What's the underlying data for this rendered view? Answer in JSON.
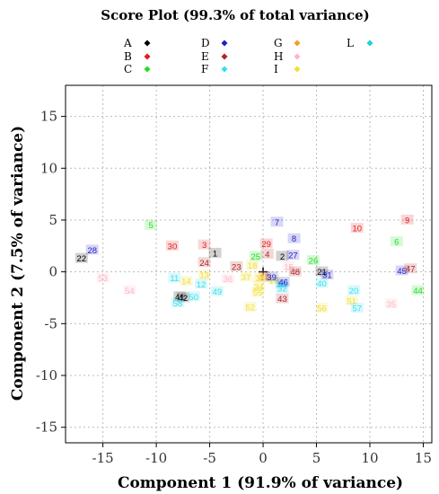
{
  "chart_data": {
    "type": "scatter",
    "title": "Score Plot (99.3% of total variance)",
    "xlabel": "Component 1 (91.9% of variance)",
    "ylabel": "Component 2 (7.5% of variance)",
    "xlim": [
      -18.5,
      15.8
    ],
    "ylim": [
      -16.5,
      18
    ],
    "xticks": [
      -15,
      -10,
      -5,
      0,
      5,
      10,
      15
    ],
    "yticks": [
      -15,
      -10,
      -5,
      0,
      5,
      10,
      15
    ],
    "grid": true,
    "origin_marker": "+",
    "legend_position": "top",
    "groups": [
      {
        "name": "A",
        "color": "#000000"
      },
      {
        "name": "B",
        "color": "#e41a1c"
      },
      {
        "name": "C",
        "color": "#22dd22"
      },
      {
        "name": "D",
        "color": "#1f1fc8"
      },
      {
        "name": "E",
        "color": "#b22222"
      },
      {
        "name": "F",
        "color": "#33e0f0"
      },
      {
        "name": "G",
        "color": "#f0a020"
      },
      {
        "name": "H",
        "color": "#ffb6c1"
      },
      {
        "name": "I",
        "color": "#f0e030"
      },
      {
        "name": "L",
        "color": "#20d0d0"
      }
    ],
    "points": [
      {
        "label": "1",
        "group": "A",
        "x": -4.5,
        "y": 1.8
      },
      {
        "label": "2",
        "group": "A",
        "x": 1.8,
        "y": 1.5
      },
      {
        "label": "3",
        "group": "B",
        "x": -5.5,
        "y": 2.6
      },
      {
        "label": "4",
        "group": "E",
        "x": 0.4,
        "y": 1.7
      },
      {
        "label": "5",
        "group": "C",
        "x": -10.5,
        "y": 4.5
      },
      {
        "label": "6",
        "group": "C",
        "x": 12.5,
        "y": 2.9
      },
      {
        "label": "7",
        "group": "D",
        "x": 1.3,
        "y": 4.8
      },
      {
        "label": "8",
        "group": "D",
        "x": 2.9,
        "y": 3.2
      },
      {
        "label": "9",
        "group": "B",
        "x": 13.5,
        "y": 5.0
      },
      {
        "label": "10",
        "group": "B",
        "x": 8.8,
        "y": 4.2
      },
      {
        "label": "11",
        "group": "F",
        "x": -8.3,
        "y": -0.6
      },
      {
        "label": "12",
        "group": "F",
        "x": -5.8,
        "y": -1.2
      },
      {
        "label": "13",
        "group": "I",
        "x": -5.5,
        "y": -0.3
      },
      {
        "label": "14",
        "group": "I",
        "x": -7.2,
        "y": -0.9
      },
      {
        "label": "15",
        "group": "H",
        "x": 2.4,
        "y": 0.5
      },
      {
        "label": "16",
        "group": "H",
        "x": 0.2,
        "y": -0.4
      },
      {
        "label": "17",
        "group": "G",
        "x": 0.1,
        "y": -0.5
      },
      {
        "label": "18",
        "group": "I",
        "x": -1.0,
        "y": 0.6
      },
      {
        "label": "19",
        "group": "I",
        "x": 1.0,
        "y": -0.8
      },
      {
        "label": "20",
        "group": "F",
        "x": 8.5,
        "y": -1.8
      },
      {
        "label": "21",
        "group": "A",
        "x": 5.5,
        "y": 0.0
      },
      {
        "label": "22",
        "group": "A",
        "x": -17.0,
        "y": 1.3
      },
      {
        "label": "23",
        "group": "E",
        "x": -2.5,
        "y": 0.5
      },
      {
        "label": "24",
        "group": "E",
        "x": -5.5,
        "y": 0.9
      },
      {
        "label": "25",
        "group": "C",
        "x": -0.7,
        "y": 1.5
      },
      {
        "label": "26",
        "group": "C",
        "x": 4.7,
        "y": 1.1
      },
      {
        "label": "27",
        "group": "D",
        "x": 2.8,
        "y": 1.6
      },
      {
        "label": "28",
        "group": "D",
        "x": -16.0,
        "y": 2.1
      },
      {
        "label": "29",
        "group": "B",
        "x": 0.3,
        "y": 2.7
      },
      {
        "label": "30",
        "group": "B",
        "x": -8.5,
        "y": 2.5
      },
      {
        "label": "31",
        "group": "D",
        "x": 6.0,
        "y": -0.3
      },
      {
        "label": "32",
        "group": "F",
        "x": 1.8,
        "y": -1.6
      },
      {
        "label": "33",
        "group": "I",
        "x": -0.3,
        "y": -0.6
      },
      {
        "label": "34",
        "group": "I",
        "x": -0.4,
        "y": -1.4
      },
      {
        "label": "35",
        "group": "H",
        "x": 12.0,
        "y": -3.1
      },
      {
        "label": "36",
        "group": "H",
        "x": -3.3,
        "y": -0.7
      },
      {
        "label": "37",
        "group": "I",
        "x": -1.6,
        "y": -0.5
      },
      {
        "label": "38",
        "group": "F",
        "x": 1.7,
        "y": -1.2
      },
      {
        "label": "39",
        "group": "D",
        "x": 0.8,
        "y": -0.5
      },
      {
        "label": "40",
        "group": "F",
        "x": 5.5,
        "y": -1.1
      },
      {
        "label": "41",
        "group": "A",
        "x": -7.8,
        "y": -2.4
      },
      {
        "label": "42",
        "group": "A",
        "x": -7.5,
        "y": -2.5
      },
      {
        "label": "43",
        "group": "E",
        "x": 1.8,
        "y": -2.6
      },
      {
        "label": "44",
        "group": "C",
        "x": 14.5,
        "y": -1.8
      },
      {
        "label": "45",
        "group": "D",
        "x": 13.0,
        "y": 0.1
      },
      {
        "label": "46",
        "group": "D",
        "x": 1.9,
        "y": -1.0
      },
      {
        "label": "47",
        "group": "E",
        "x": 13.8,
        "y": 0.3
      },
      {
        "label": "48",
        "group": "E",
        "x": 3.0,
        "y": 0.0
      },
      {
        "label": "49",
        "group": "F",
        "x": -4.3,
        "y": -1.9
      },
      {
        "label": "50",
        "group": "F",
        "x": -6.5,
        "y": -2.4
      },
      {
        "label": "51",
        "group": "I",
        "x": 8.3,
        "y": -2.8
      },
      {
        "label": "52",
        "group": "I",
        "x": -1.2,
        "y": -3.4
      },
      {
        "label": "53",
        "group": "H",
        "x": -15.0,
        "y": -0.6
      },
      {
        "label": "54",
        "group": "H",
        "x": -12.5,
        "y": -1.8
      },
      {
        "label": "55",
        "group": "I",
        "x": -0.5,
        "y": -2.0
      },
      {
        "label": "56",
        "group": "I",
        "x": 5.5,
        "y": -3.5
      },
      {
        "label": "57",
        "group": "F",
        "x": 8.8,
        "y": -3.5
      },
      {
        "label": "58",
        "group": "F",
        "x": -8.0,
        "y": -3.0
      }
    ]
  }
}
